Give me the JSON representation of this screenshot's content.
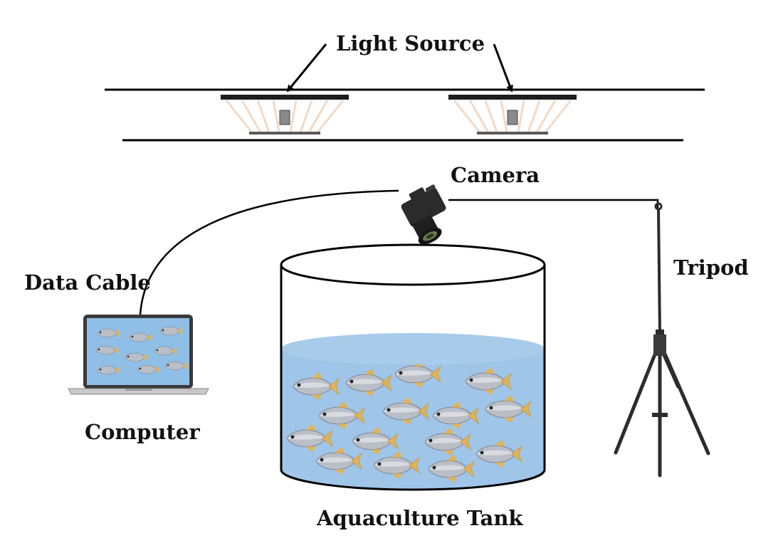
{
  "diagram": {
    "labels": {
      "light_source": "Light Source",
      "camera": "Camera",
      "data_cable": "Data Cable",
      "tripod": "Tripod",
      "computer": "Computer",
      "aquaculture_tank": "Aquaculture Tank"
    },
    "colors": {
      "line": "#000000",
      "water": "#9fc5e8",
      "water_surface": "#a8cbea",
      "lamp_glow": "#f3d9c4",
      "fish_body": "#b9bec7",
      "fish_fin": "#e2b355",
      "screen": "#8fbfe6",
      "laptop_frame": "#3a3a3a",
      "laptop_base": "#c8c8c8",
      "tripod": "#2c2c2c",
      "camera_body": "#2b2b2b"
    },
    "icons": [
      "light-fixture-icon",
      "camera-icon",
      "laptop-icon",
      "tripod-icon",
      "fish-icon",
      "tank-icon"
    ]
  }
}
